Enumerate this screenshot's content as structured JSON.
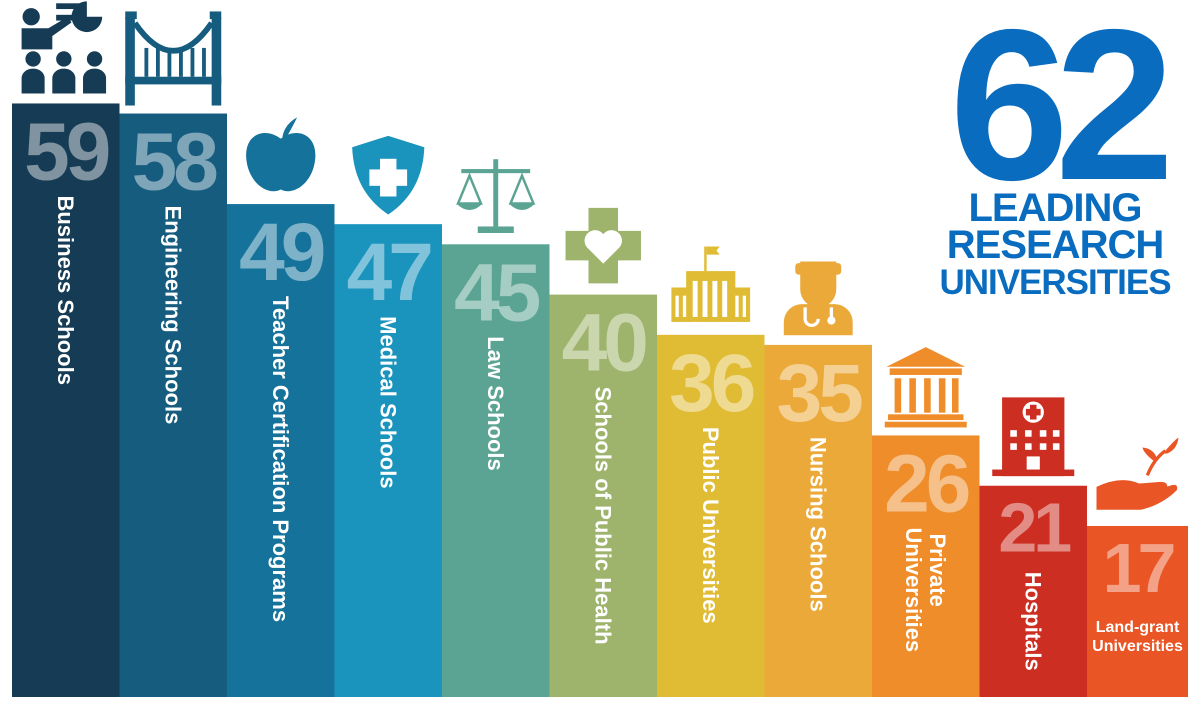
{
  "hero": {
    "number": "62",
    "line1": "LEADING",
    "line2": "RESEARCH",
    "line3": "UNIVERSITIES"
  },
  "chart_data": {
    "type": "bar",
    "title": "",
    "xlabel": "",
    "ylabel": "",
    "ylim": [
      0,
      62
    ],
    "categories": [
      "Business Schools",
      "Engineering Schools",
      "Teacher Certification Programs",
      "Medical Schools",
      "Law Schools",
      "Schools of Public Health",
      "Public Universities",
      "Nursing Schools",
      "Private Universities",
      "Hospitals",
      "Land-grant Universities"
    ],
    "values": [
      59,
      58,
      49,
      47,
      45,
      40,
      36,
      35,
      26,
      21,
      17
    ],
    "colors": [
      "#163b54",
      "#165c7f",
      "#15739b",
      "#1a93bd",
      "#5ba493",
      "#9eb46c",
      "#e0bc35",
      "#eba93a",
      "#ef8d2a",
      "#cc2f21",
      "#ea5525"
    ],
    "icons": [
      "teacher-classroom-icon",
      "bridge-icon",
      "apple-icon",
      "medical-shield-icon",
      "scales-of-justice-icon",
      "health-cross-heart-icon",
      "campus-building-icon",
      "nurse-icon",
      "classical-building-icon",
      "hospital-icon",
      "hand-sprout-icon"
    ],
    "label_lines": [
      [
        "Business Schools"
      ],
      [
        "Engineering Schools"
      ],
      [
        "Teacher Certification Programs"
      ],
      [
        "Medical Schools"
      ],
      [
        "Law Schools"
      ],
      [
        "Schools of Public Health"
      ],
      [
        "Public Universities"
      ],
      [
        "Nursing Schools"
      ],
      [
        "Private",
        "Universities"
      ],
      [
        "Hospitals"
      ],
      [
        "Land-grant",
        "Universities"
      ]
    ]
  }
}
